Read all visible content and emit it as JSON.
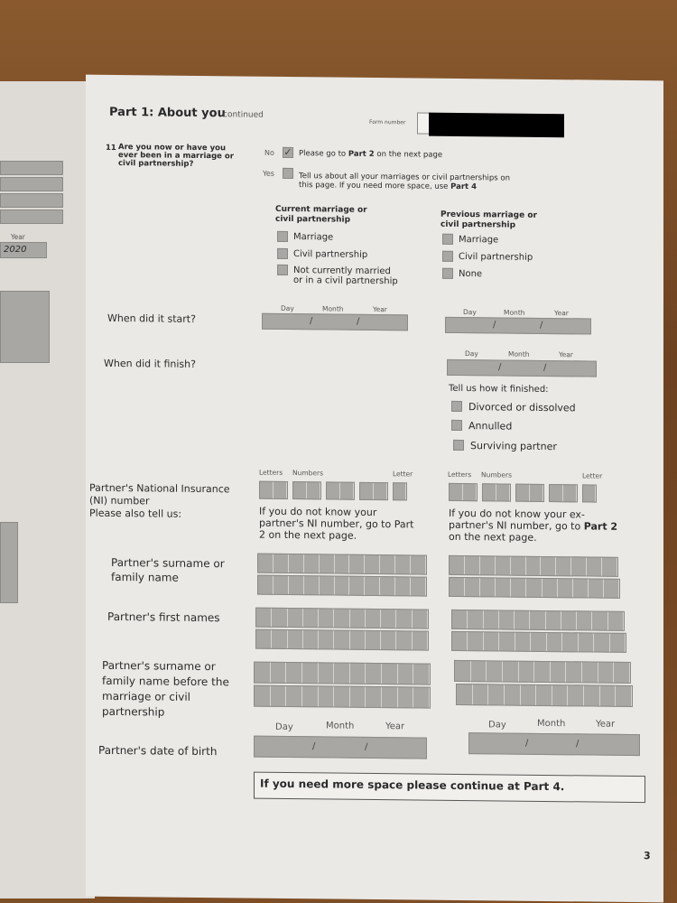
{
  "header": {
    "title": "Part 1: About you",
    "continued": "continued",
    "form_number_label": "Form number"
  },
  "question": {
    "number": "11",
    "text": "Are you now or have you ever been in a marriage or civil partnership?",
    "no_label": "No",
    "no_checked": true,
    "no_text_pre": "Please go to ",
    "no_text_bold": "Part 2",
    "no_text_post": " on the next page",
    "yes_label": "Yes",
    "yes_checked": false,
    "yes_text": "Tell us about all your marriages or civil partnerships on this page. If you need more space, use ",
    "yes_bold": "Part 4"
  },
  "current": {
    "heading": "Current marriage or civil partnership",
    "options": [
      "Marriage",
      "Civil partnership",
      "Not currently married or in a civil partnership"
    ]
  },
  "previous": {
    "heading": "Previous marriage or civil partnership",
    "options": [
      "Marriage",
      "Civil partnership",
      "None"
    ]
  },
  "date_labels": {
    "day": "Day",
    "month": "Month",
    "year": "Year"
  },
  "rows": {
    "started": "When did it start?",
    "finished": "When did it finish?",
    "ni": "Partner's National Insurance (NI) number",
    "also": "Please also tell us:",
    "surname": "Partner's surname or family name",
    "first": "Partner's first names",
    "prev_surname": "Partner's surname or family name before the marriage or civil partnership",
    "dob": "Partner's date of birth"
  },
  "finished": {
    "heading": "Tell us how it finished:",
    "options": [
      "Divorced or dissolved",
      "Annulled",
      "Surviving partner"
    ]
  },
  "ni_labels": {
    "letters": "Letters",
    "numbers": "Numbers",
    "letter": "Letter"
  },
  "ni_notes": {
    "current": "If you do not know your partner's NI number, go to Part 2 on the next page.",
    "prev_pre": "If you do not know your ex-partner's NI number, go to ",
    "prev_bold": "Part 2",
    "prev_post": " on the next page."
  },
  "footer_note": "If you need more space please continue at Part 4.",
  "page_number": "3",
  "left_page": {
    "year_label": "Year",
    "year_value": "2020"
  }
}
